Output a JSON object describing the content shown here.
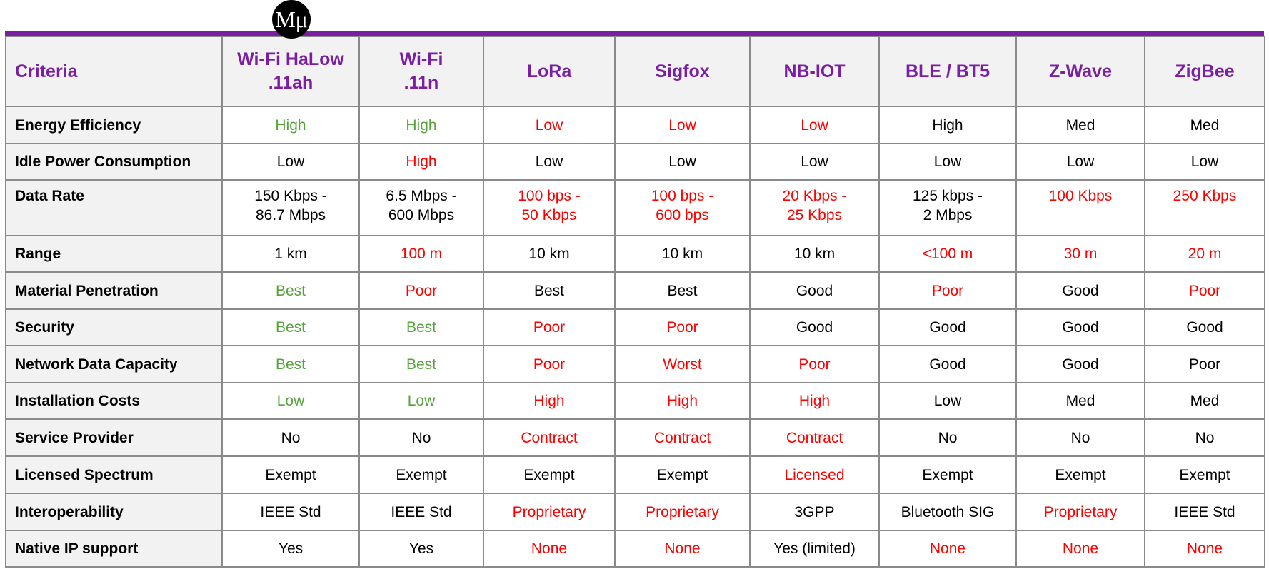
{
  "logo": "Mμ",
  "table": {
    "header": [
      "Criteria",
      "Wi-Fi HaLow\n.11ah",
      "Wi-Fi\n.11n",
      "LoRa",
      "Sigfox",
      "NB-IOT",
      "BLE / BT5",
      "Z-Wave",
      "ZigBee"
    ],
    "header_color": "#7b1fa2",
    "rows": [
      {
        "criterion": "Energy Efficiency",
        "cells": [
          {
            "text": "High",
            "color": "#57a33b"
          },
          {
            "text": "High",
            "color": "#57a33b"
          },
          {
            "text": "Low",
            "color": "#ff0000"
          },
          {
            "text": "Low",
            "color": "#ff0000"
          },
          {
            "text": "Low",
            "color": "#ff0000"
          },
          {
            "text": "High",
            "color": "#000000"
          },
          {
            "text": "Med",
            "color": "#000000"
          },
          {
            "text": "Med",
            "color": "#000000"
          }
        ]
      },
      {
        "criterion": "Idle Power Consumption",
        "cells": [
          {
            "text": "Low",
            "color": "#000000"
          },
          {
            "text": "High",
            "color": "#ff0000"
          },
          {
            "text": "Low",
            "color": "#000000"
          },
          {
            "text": "Low",
            "color": "#000000"
          },
          {
            "text": "Low",
            "color": "#000000"
          },
          {
            "text": "Low",
            "color": "#000000"
          },
          {
            "text": "Low",
            "color": "#000000"
          },
          {
            "text": "Low",
            "color": "#000000"
          }
        ]
      },
      {
        "criterion": "Data Rate",
        "cells": [
          {
            "text": "150 Kbps -\n86.7 Mbps",
            "color": "#000000"
          },
          {
            "text": "6.5 Mbps -\n600 Mbps",
            "color": "#000000"
          },
          {
            "text": "100 bps -\n50 Kbps",
            "color": "#ff0000"
          },
          {
            "text": "100 bps -\n600 bps",
            "color": "#ff0000"
          },
          {
            "text": "20 Kbps -\n25 Kbps",
            "color": "#ff0000"
          },
          {
            "text": "125 kbps -\n2 Mbps",
            "color": "#000000"
          },
          {
            "text": "100 Kbps",
            "color": "#ff0000"
          },
          {
            "text": "250 Kbps",
            "color": "#ff0000"
          }
        ]
      },
      {
        "criterion": "Range",
        "cells": [
          {
            "text": "1 km",
            "color": "#000000"
          },
          {
            "text": "100 m",
            "color": "#ff0000"
          },
          {
            "text": "10 km",
            "color": "#000000"
          },
          {
            "text": "10 km",
            "color": "#000000"
          },
          {
            "text": "10 km",
            "color": "#000000"
          },
          {
            "text": "<100 m",
            "color": "#ff0000"
          },
          {
            "text": "30 m",
            "color": "#ff0000"
          },
          {
            "text": "20 m",
            "color": "#ff0000"
          }
        ]
      },
      {
        "criterion": "Material Penetration",
        "cells": [
          {
            "text": "Best",
            "color": "#57a33b"
          },
          {
            "text": "Poor",
            "color": "#ff0000"
          },
          {
            "text": "Best",
            "color": "#000000"
          },
          {
            "text": "Best",
            "color": "#000000"
          },
          {
            "text": "Good",
            "color": "#000000"
          },
          {
            "text": "Poor",
            "color": "#ff0000"
          },
          {
            "text": "Good",
            "color": "#000000"
          },
          {
            "text": "Poor",
            "color": "#ff0000"
          }
        ]
      },
      {
        "criterion": "Security",
        "cells": [
          {
            "text": "Best",
            "color": "#57a33b"
          },
          {
            "text": "Best",
            "color": "#57a33b"
          },
          {
            "text": "Poor",
            "color": "#ff0000"
          },
          {
            "text": "Poor",
            "color": "#ff0000"
          },
          {
            "text": "Good",
            "color": "#000000"
          },
          {
            "text": "Good",
            "color": "#000000"
          },
          {
            "text": "Good",
            "color": "#000000"
          },
          {
            "text": "Good",
            "color": "#000000"
          }
        ]
      },
      {
        "criterion": "Network Data Capacity",
        "cells": [
          {
            "text": "Best",
            "color": "#57a33b"
          },
          {
            "text": "Best",
            "color": "#57a33b"
          },
          {
            "text": "Poor",
            "color": "#ff0000"
          },
          {
            "text": "Worst",
            "color": "#ff0000"
          },
          {
            "text": "Poor",
            "color": "#ff0000"
          },
          {
            "text": "Good",
            "color": "#000000"
          },
          {
            "text": "Good",
            "color": "#000000"
          },
          {
            "text": "Poor",
            "color": "#000000"
          }
        ]
      },
      {
        "criterion": "Installation Costs",
        "cells": [
          {
            "text": "Low",
            "color": "#57a33b"
          },
          {
            "text": "Low",
            "color": "#57a33b"
          },
          {
            "text": "High",
            "color": "#ff0000"
          },
          {
            "text": "High",
            "color": "#ff0000"
          },
          {
            "text": "High",
            "color": "#ff0000"
          },
          {
            "text": "Low",
            "color": "#000000"
          },
          {
            "text": "Med",
            "color": "#000000"
          },
          {
            "text": "Med",
            "color": "#000000"
          }
        ]
      },
      {
        "criterion": "Service Provider",
        "cells": [
          {
            "text": "No",
            "color": "#000000"
          },
          {
            "text": "No",
            "color": "#000000"
          },
          {
            "text": "Contract",
            "color": "#ff0000"
          },
          {
            "text": "Contract",
            "color": "#ff0000"
          },
          {
            "text": "Contract",
            "color": "#ff0000"
          },
          {
            "text": "No",
            "color": "#000000"
          },
          {
            "text": "No",
            "color": "#000000"
          },
          {
            "text": "No",
            "color": "#000000"
          }
        ]
      },
      {
        "criterion": "Licensed Spectrum",
        "cells": [
          {
            "text": "Exempt",
            "color": "#000000"
          },
          {
            "text": "Exempt",
            "color": "#000000"
          },
          {
            "text": "Exempt",
            "color": "#000000"
          },
          {
            "text": "Exempt",
            "color": "#000000"
          },
          {
            "text": "Licensed",
            "color": "#ff0000"
          },
          {
            "text": "Exempt",
            "color": "#000000"
          },
          {
            "text": "Exempt",
            "color": "#000000"
          },
          {
            "text": "Exempt",
            "color": "#000000"
          }
        ]
      },
      {
        "criterion": "Interoperability",
        "cells": [
          {
            "text": "IEEE Std",
            "color": "#000000"
          },
          {
            "text": "IEEE Std",
            "color": "#000000"
          },
          {
            "text": "Proprietary",
            "color": "#ff0000"
          },
          {
            "text": "Proprietary",
            "color": "#ff0000"
          },
          {
            "text": "3GPP",
            "color": "#000000"
          },
          {
            "text": "Bluetooth SIG",
            "color": "#000000"
          },
          {
            "text": "Proprietary",
            "color": "#ff0000"
          },
          {
            "text": "IEEE Std",
            "color": "#000000"
          }
        ]
      },
      {
        "criterion": "Native IP support",
        "cells": [
          {
            "text": "Yes",
            "color": "#000000"
          },
          {
            "text": "Yes",
            "color": "#000000"
          },
          {
            "text": "None",
            "color": "#ff0000"
          },
          {
            "text": "None",
            "color": "#ff0000"
          },
          {
            "text": "Yes (limited)",
            "color": "#000000"
          },
          {
            "text": "None",
            "color": "#ff0000"
          },
          {
            "text": "None",
            "color": "#ff0000"
          },
          {
            "text": "None",
            "color": "#ff0000"
          }
        ]
      }
    ]
  }
}
